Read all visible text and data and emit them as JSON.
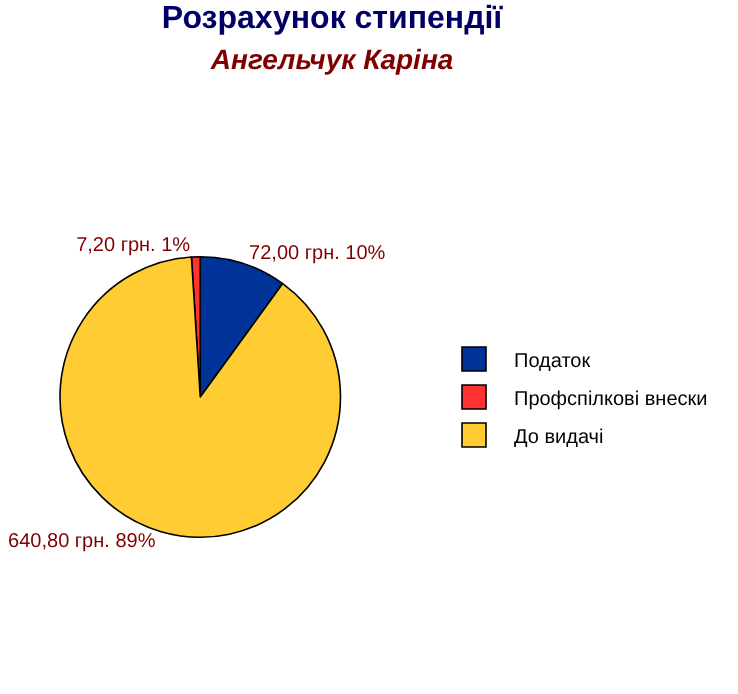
{
  "chart_data": {
    "type": "pie",
    "title": "Розрахунок стипендії",
    "subtitle": "Ангельчук Каріна",
    "categories": [
      "Податок",
      "Профспілкові внески",
      "До видачі"
    ],
    "values": [
      72.0,
      7.2,
      640.8
    ],
    "colors": [
      "#003399",
      "#ff3333",
      "#ffcc33"
    ],
    "value_labels": [
      "72,00 грн. 10%",
      "7,20 грн. 1%",
      "640,80 грн. 89%"
    ],
    "legend": "right"
  }
}
